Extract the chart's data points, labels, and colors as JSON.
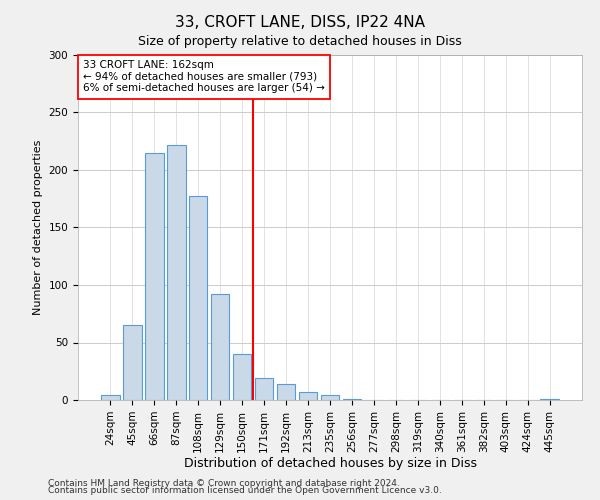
{
  "title": "33, CROFT LANE, DISS, IP22 4NA",
  "subtitle": "Size of property relative to detached houses in Diss",
  "xlabel": "Distribution of detached houses by size in Diss",
  "ylabel": "Number of detached properties",
  "footnote1": "Contains HM Land Registry data © Crown copyright and database right 2024.",
  "footnote2": "Contains public sector information licensed under the Open Government Licence v3.0.",
  "bar_labels": [
    "24sqm",
    "45sqm",
    "66sqm",
    "87sqm",
    "108sqm",
    "129sqm",
    "150sqm",
    "171sqm",
    "192sqm",
    "213sqm",
    "235sqm",
    "256sqm",
    "277sqm",
    "298sqm",
    "319sqm",
    "340sqm",
    "361sqm",
    "382sqm",
    "403sqm",
    "424sqm",
    "445sqm"
  ],
  "bar_values": [
    4,
    65,
    215,
    222,
    177,
    92,
    40,
    19,
    14,
    7,
    4,
    1,
    0,
    0,
    0,
    0,
    0,
    0,
    0,
    0,
    1
  ],
  "bar_color": "#c9d9e8",
  "bar_edge_color": "#5b9bd5",
  "red_line_index": 6.5,
  "annotation_title": "33 CROFT LANE: 162sqm",
  "annotation_line1": "← 94% of detached houses are smaller (793)",
  "annotation_line2": "6% of semi-detached houses are larger (54) →",
  "ylim": [
    0,
    300
  ],
  "yticks": [
    0,
    50,
    100,
    150,
    200,
    250,
    300
  ],
  "background_color": "#f0f0f0",
  "plot_bg_color": "#ffffff",
  "grid_color": "#cccccc",
  "title_fontsize": 11,
  "subtitle_fontsize": 9,
  "xlabel_fontsize": 9,
  "ylabel_fontsize": 8,
  "tick_fontsize": 7.5,
  "footnote_fontsize": 6.5
}
